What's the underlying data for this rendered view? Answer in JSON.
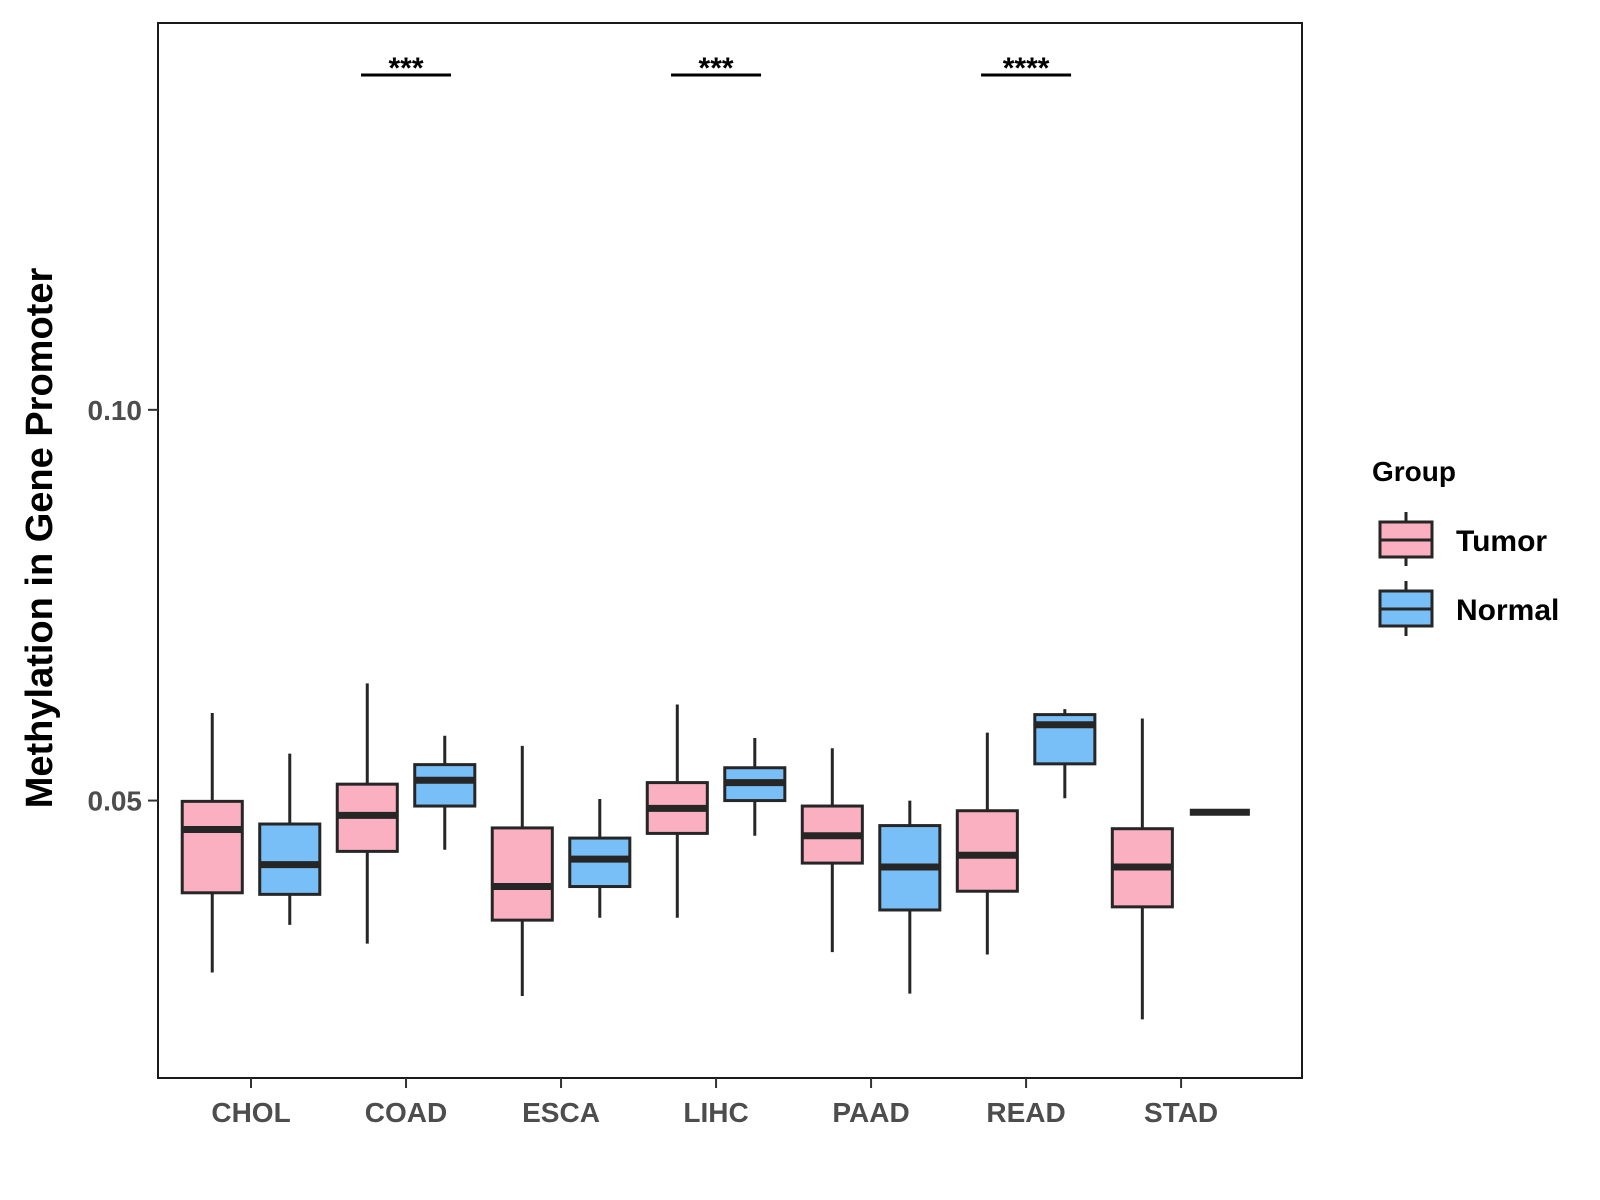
{
  "chart_data": {
    "type": "boxplot",
    "title": "",
    "xlabel": "",
    "ylabel": "Methylation in Gene Promoter",
    "ylim": [
      0.0145,
      0.1495
    ],
    "yticks": [
      {
        "value": 0.05,
        "label": "0.05"
      },
      {
        "value": 0.1,
        "label": "0.10"
      }
    ],
    "categories": [
      "CHOL",
      "COAD",
      "ESCA",
      "LIHC",
      "PAAD",
      "READ",
      "STAD"
    ],
    "legend": {
      "title": "Group",
      "position": "right",
      "entries": [
        {
          "name": "Tumor",
          "color": "#fbb0c1"
        },
        {
          "name": "Normal",
          "color": "#79bff7"
        }
      ]
    },
    "series": [
      {
        "name": "Tumor",
        "color": "#fbb0c1",
        "boxes": [
          {
            "min": 0.028,
            "q1": 0.0382,
            "median": 0.0463,
            "q3": 0.0499,
            "max": 0.0612
          },
          {
            "min": 0.0317,
            "q1": 0.0435,
            "median": 0.0481,
            "q3": 0.0521,
            "max": 0.065
          },
          {
            "min": 0.025,
            "q1": 0.0347,
            "median": 0.039,
            "q3": 0.0465,
            "max": 0.057
          },
          {
            "min": 0.035,
            "q1": 0.0458,
            "median": 0.049,
            "q3": 0.0523,
            "max": 0.0623
          },
          {
            "min": 0.0306,
            "q1": 0.042,
            "median": 0.0455,
            "q3": 0.0493,
            "max": 0.0567
          },
          {
            "min": 0.0303,
            "q1": 0.0384,
            "median": 0.043,
            "q3": 0.0487,
            "max": 0.0587
          },
          {
            "min": 0.022,
            "q1": 0.0364,
            "median": 0.0415,
            "q3": 0.0464,
            "max": 0.0605
          }
        ]
      },
      {
        "name": "Normal",
        "color": "#79bff7",
        "boxes": [
          {
            "min": 0.0341,
            "q1": 0.038,
            "median": 0.0418,
            "q3": 0.047,
            "max": 0.056
          },
          {
            "min": 0.0437,
            "q1": 0.0493,
            "median": 0.0526,
            "q3": 0.0546,
            "max": 0.0583
          },
          {
            "min": 0.035,
            "q1": 0.039,
            "median": 0.0425,
            "q3": 0.0452,
            "max": 0.0502
          },
          {
            "min": 0.0455,
            "q1": 0.05,
            "median": 0.0523,
            "q3": 0.0542,
            "max": 0.058
          },
          {
            "min": 0.0253,
            "q1": 0.036,
            "median": 0.0415,
            "q3": 0.0468,
            "max": 0.05
          },
          {
            "min": 0.0503,
            "q1": 0.0547,
            "median": 0.0597,
            "q3": 0.061,
            "max": 0.0617
          },
          {
            "min": 0.0485,
            "q1": 0.0485,
            "median": 0.0485,
            "q3": 0.0485,
            "max": 0.0485
          }
        ]
      }
    ],
    "annotations": [
      {
        "category": "COAD",
        "text": "***"
      },
      {
        "category": "LIHC",
        "text": "***"
      },
      {
        "category": "READ",
        "text": "****"
      }
    ]
  }
}
